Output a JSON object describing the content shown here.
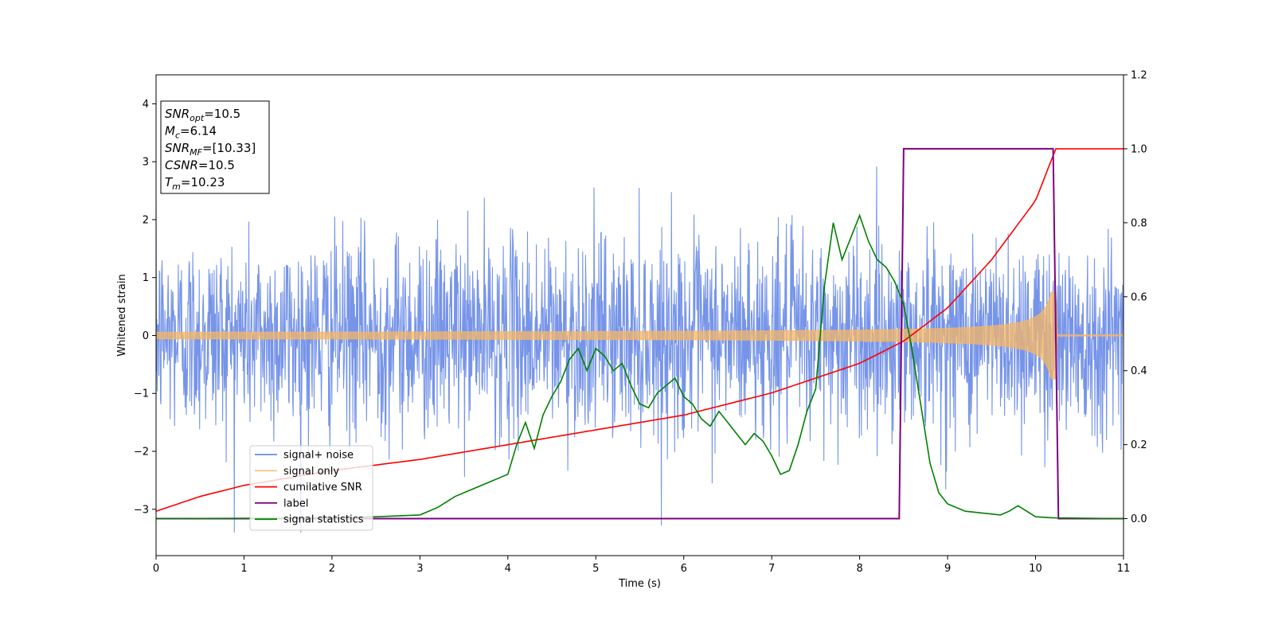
{
  "chart_data": {
    "type": "line",
    "xlabel": "Time (s)",
    "ylabel": "Whitened strain",
    "xlim": [
      0,
      11
    ],
    "ylim_left": [
      -3.8,
      4.5
    ],
    "ylim_right": [
      -0.1,
      1.2
    ],
    "x_ticks": [
      0,
      1,
      2,
      3,
      4,
      5,
      6,
      7,
      8,
      9,
      10,
      11
    ],
    "y_ticks_left": [
      -3,
      -2,
      -1,
      0,
      1,
      2,
      3,
      4
    ],
    "y_ticks_right": [
      0.0,
      0.2,
      0.4,
      0.6,
      0.8,
      1.0,
      1.2
    ],
    "grid": false,
    "legend_position": "lower-left",
    "annotation": {
      "lines": [
        {
          "var": "SNR",
          "sub": "opt",
          "value": "=10.5"
        },
        {
          "var": "M",
          "sub": "c",
          "value": "=6.14"
        },
        {
          "var": "SNR",
          "sub": "MF",
          "value": "=[10.33]"
        },
        {
          "var": "CSNR",
          "sub": "",
          "value": "=10.5"
        },
        {
          "var": "T",
          "sub": "m",
          "value": "=10.23"
        }
      ]
    },
    "series": [
      {
        "name": "signal+ noise",
        "axis": "left",
        "color": "#6a8be6",
        "kind": "noise",
        "noise_sigma": 0.85,
        "noise_range": [
          -3.4,
          4.2
        ]
      },
      {
        "name": "signal only",
        "axis": "left",
        "color": "#f5b565",
        "kind": "chirp",
        "t_merge": 10.23,
        "amp_start": 0.04,
        "amp_merge": 0.75
      },
      {
        "name": "cumilative SNR",
        "axis": "right",
        "color": "#ff0000",
        "kind": "line",
        "x": [
          0,
          0.5,
          1,
          2,
          3,
          4,
          5,
          6,
          7,
          7.5,
          8,
          8.5,
          9,
          9.5,
          10,
          10.23,
          11
        ],
        "y": [
          0.02,
          0.06,
          0.09,
          0.13,
          0.16,
          0.2,
          0.24,
          0.28,
          0.34,
          0.38,
          0.42,
          0.48,
          0.57,
          0.7,
          0.86,
          1.0,
          1.0
        ]
      },
      {
        "name": "label",
        "axis": "right",
        "color": "#800080",
        "kind": "line",
        "x": [
          0,
          8.45,
          8.5,
          10.2,
          10.26,
          11
        ],
        "y": [
          0,
          0,
          1,
          1,
          0,
          0
        ]
      },
      {
        "name": "signal statistics",
        "axis": "right",
        "color": "#008000",
        "kind": "line",
        "x": [
          0,
          2,
          2.5,
          3,
          3.2,
          3.4,
          3.6,
          3.8,
          4,
          4.1,
          4.2,
          4.3,
          4.4,
          4.5,
          4.6,
          4.7,
          4.8,
          4.9,
          5,
          5.1,
          5.2,
          5.3,
          5.4,
          5.5,
          5.6,
          5.7,
          5.8,
          5.9,
          6,
          6.1,
          6.2,
          6.3,
          6.4,
          6.5,
          6.6,
          6.7,
          6.8,
          6.9,
          7,
          7.1,
          7.2,
          7.3,
          7.4,
          7.5,
          7.6,
          7.7,
          7.8,
          7.9,
          8,
          8.1,
          8.2,
          8.3,
          8.4,
          8.5,
          8.6,
          8.7,
          8.8,
          8.9,
          9,
          9.2,
          9.4,
          9.6,
          9.7,
          9.8,
          9.9,
          10,
          10.2,
          11
        ],
        "y": [
          0,
          0.002,
          0.005,
          0.01,
          0.03,
          0.06,
          0.08,
          0.1,
          0.12,
          0.2,
          0.26,
          0.19,
          0.28,
          0.33,
          0.37,
          0.43,
          0.46,
          0.4,
          0.46,
          0.44,
          0.4,
          0.42,
          0.36,
          0.31,
          0.3,
          0.34,
          0.36,
          0.38,
          0.33,
          0.31,
          0.27,
          0.25,
          0.29,
          0.26,
          0.23,
          0.2,
          0.23,
          0.21,
          0.17,
          0.12,
          0.13,
          0.2,
          0.29,
          0.35,
          0.63,
          0.8,
          0.7,
          0.76,
          0.82,
          0.75,
          0.7,
          0.68,
          0.64,
          0.58,
          0.45,
          0.3,
          0.15,
          0.07,
          0.04,
          0.02,
          0.015,
          0.01,
          0.02,
          0.035,
          0.02,
          0.005,
          0.002,
          0.0
        ]
      }
    ]
  }
}
